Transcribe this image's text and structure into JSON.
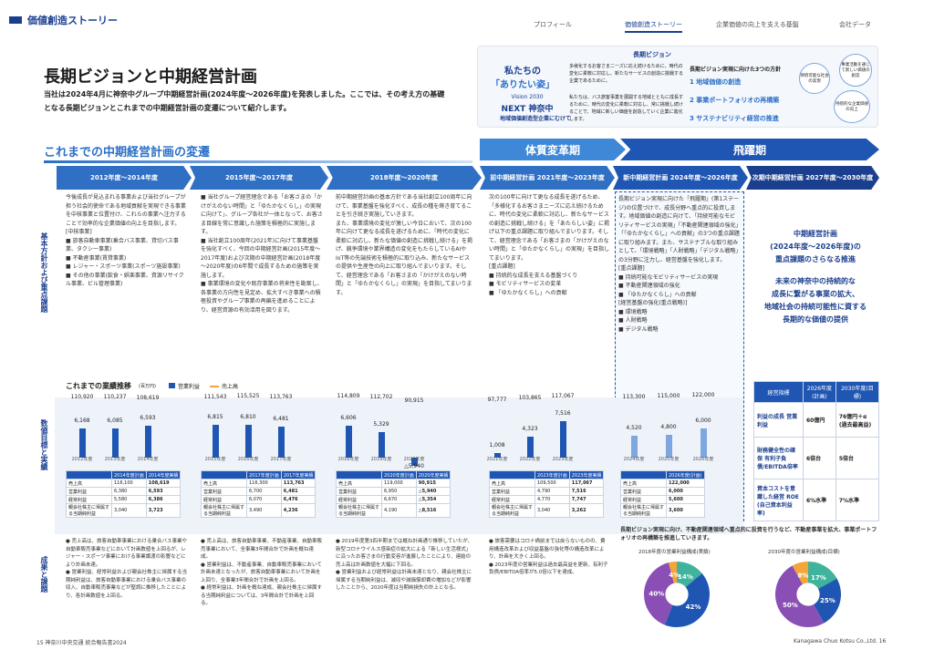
{
  "header": {
    "section": "価値創造ストーリー",
    "nav": [
      "プロフィール",
      "価値創造ストーリー",
      "企業価値の向上を支える基盤",
      "会社データ"
    ]
  },
  "title": "長期ビジョンと中期経営計画",
  "lead": "当社は2024年4月に神奈中グループ中期経営計画(2024年度～2026年度)を発表しました。ここでは、その考え方の基礎となる長期ビジョンとこれまでの中期経営計画の変遷について紹介します。",
  "vision": {
    "label": "長期ビジョン",
    "slogan1": "私たちの",
    "slogan2": "「ありたい姿」",
    "v2030": "Vision 2030",
    "next": "NEXT 神奈中",
    "sub": "地域価値創造型企業にむけて",
    "desc1": "多様化するお客さまニーズに応え続けるために、時代の変化に柔軟に対応し、新たなサービスの創造に挑戦する企業であるために。",
    "desc2": "私たちは、バス旅客事業を展開する地域とともに成長するために、時代の変化に柔軟に対応し、常に挑戦し続けることで、地域に新しい価値を創造していく企業に進化します。",
    "policy_title": "長期ビジョン実現に向けた3つの方針",
    "policies": [
      "1 地域価値の創造",
      "2 事業ポートフォリオの再構築",
      "3 サステナビリティ経営の推進"
    ],
    "cycle": [
      "持続可能な社会の実現",
      "事業活動を通じて新しい価値の創造",
      "持続的な企業価値の向上"
    ]
  },
  "section_title": "これまでの中期経営計画の変遷",
  "bands": [
    "体質変革期",
    "飛躍期"
  ],
  "periods": [
    "2012年度～2014年度",
    "2015年度～2017年度",
    "2018年度～2020年度",
    "前中期経営計画 2021年度～2023年度",
    "新中期経営計画 2024年度～2026年度",
    "次期中期経営計画 2027年度～2030年度"
  ],
  "row_labels": [
    "基本方針および重点課題",
    "数値目標と実績",
    "成果と課題"
  ],
  "policies_text": [
    "今後成長が見込まれる事業および当社グループが担う社会的使命である地域貢献を実現できる事業を中核事業と位置付け、これらの事業へ注力することで効率的な企業価値の向上を目指します。\n[中核事業]\n■ 旅客自動車事業(乗合バス事業、貸切バス事業、タクシー事業)\n■ 不動産事業(賃貸事業)\n■ レジャー・スポーツ事業(スポーツ施設事業)\n■ その他の事業(飲食・娯楽事業、資源リサイクル事業、ビル管理事業)",
    "■ 当社グループ経営理念である「お客さまの「かけがえのない時間」と「ゆたかなくらし」の実現に向けて」、グループ各社が一体となって、お客さま目線を常に意識した施策を積極的に実施します。\n■ 当社創立100周年(2021年)に向けて事業基盤を強化すべく、今回の中期経営計画(2015年度～2017年度)および次期の中期経営計画(2018年度～2020年度)の6年間で成長するための施策を実施します。\n■ 事業環境の変化や既存事業の将来性を勘案し、各事業の方向性を見定め、拡大すべき事業への積極投資やグループ事業の再編を進めることにより、経営資源の有効活用を図ります。",
    "前中期経営計画の基本方針である当社創立100周年に向けて、事業基盤を強化すべく、成長の種を蒔き育てることを引き続き実施していきます。\nまた、事業環境の変化が激しい今日において、次の100年に向けて更なる成長を遂げるために、「時代の変化に柔軟に対応し、新たな価値の創造に挑戦し続ける」を掲げ、競争環境や業界構造の変化をもたらしているAIやIoT等の先端技術を積極的に取り込み、新たなサービスの提供や生産性の向上に取り組んでまいります。そして、経営理念である「お客さまの「かけがえのない時間」と「ゆたかなくらし」の実現」を目指してまいります。",
    "次の100年に向けて更なる成長を遂げるため、「多様化するお客さまニーズに応え続けるために、時代の変化に柔軟に対応し、新たなサービスの創造に挑戦し続ける」を「あたらしい姿」に掲げ以下の重点課題に取り組んでまいります。そして、経営理念である「お客さまの「かけがえのない時間」と「ゆたかなくらし」の実現」を目指してまいります。\n[重点課題]\n■ 持続的な成長を支える基盤づくり\n■ モビリティサービスの変革\n■ 「ゆたかなくらし」への貢献",
    "長期ビジョン実現に向けた「飛躍期」(第1ステージ)の位置づけで、成長分野へ重点的に投資します。地域価値の創造に向けて、「持続可能なモビリティサービスの実現」「不動産関連領域の強化」「「ゆたかなくらし」への貢献」の3つの重点課題に取り組みます。また、サステナブルな取り組みとして、「環境戦略」「人財戦略」「デジタル戦略」の3分野に注力し、経営基盤を強化します。\n[重点課題]\n■ 持続可能なモビリティサービスの実現\n■ 不動産関連領域の強化\n■ 「ゆたかなくらし」への貢献\n[経営基盤の強化(重点戦略)]\n■ 環境戦略\n■ 人財戦略\n■ デジタル戦略"
  ],
  "next_plan": {
    "line1": "中期経営計画",
    "line2": "(2024年度～2026年度)の",
    "line3": "重点課題のさらなる推進",
    "line4": "未来の神奈中の持続的な",
    "line5": "成長に繋がる事業の拡大、",
    "line6": "地域社会の持続可能性に資する",
    "line7": "長期的な価値の提供"
  },
  "perf": {
    "title": "これまでの業績推移",
    "unit": "(百万円)",
    "legend_op": "営業利益",
    "legend_sales": "売上高",
    "unit2": "(百万円)"
  },
  "chart_data": {
    "type": "bar",
    "title": "これまでの業績推移",
    "years": [
      "2012年度",
      "2013年度",
      "2014年度",
      "2015年度",
      "2016年度",
      "2017年度",
      "2018年度",
      "2019年度",
      "2020年度",
      "2021年度",
      "2022年度",
      "2023年度",
      "2024年度",
      "2025年度",
      "2026年度"
    ],
    "sales": [
      110920,
      110237,
      108619,
      111543,
      115525,
      113763,
      114809,
      112702,
      90915,
      97777,
      103865,
      117067,
      113300,
      115000,
      122000
    ],
    "operating_profit": [
      6168,
      6085,
      6593,
      6815,
      6810,
      6481,
      6606,
      5329,
      -5940,
      1008,
      4323,
      7516,
      4520,
      4800,
      6000
    ]
  },
  "tables": [
    {
      "h": [
        "",
        "2014年度計画",
        "2014年度実績"
      ],
      "rows": [
        [
          "売上高",
          "116,100",
          "108,619"
        ],
        [
          "営業利益",
          "6,380",
          "6,593"
        ],
        [
          "経常利益",
          "5,580",
          "6,386"
        ],
        [
          "親会社株主に帰属する当期純利益",
          "3,040",
          "3,723"
        ]
      ]
    },
    {
      "h": [
        "",
        "2017年度計画",
        "2017年度実績"
      ],
      "rows": [
        [
          "売上高",
          "116,300",
          "113,763"
        ],
        [
          "営業利益",
          "6,700",
          "6,481"
        ],
        [
          "経常利益",
          "6,070",
          "6,476"
        ],
        [
          "親会社株主に帰属する当期純利益",
          "3,490",
          "4,236"
        ]
      ]
    },
    {
      "h": [
        "",
        "2020年度計画",
        "2020年度実績"
      ],
      "rows": [
        [
          "売上高",
          "119,000",
          "90,915"
        ],
        [
          "営業利益",
          "6,950",
          "△5,940"
        ],
        [
          "経常利益",
          "6,670",
          "△5,354"
        ],
        [
          "親会社株主に帰属する当期純利益",
          "4,190",
          "△8,516"
        ]
      ]
    },
    {
      "h": [
        "",
        "2023年度計画",
        "2023年度実績"
      ],
      "rows": [
        [
          "売上高",
          "109,500",
          "117,067"
        ],
        [
          "営業利益",
          "4,790",
          "7,516"
        ],
        [
          "経常利益",
          "4,770",
          "7,747"
        ],
        [
          "親会社株主に帰属する当期純利益",
          "3,040",
          "3,262"
        ]
      ]
    },
    {
      "h": [
        "",
        "2026年度(計画)"
      ],
      "rows": [
        [
          "売上高",
          "122,000"
        ],
        [
          "営業利益",
          "6,000"
        ],
        [
          "経常利益",
          "5,600"
        ],
        [
          "親会社株主に帰属する当期純利益",
          "3,600"
        ]
      ]
    }
  ],
  "goals": {
    "h": [
      "経営指標",
      "2026年度(計画)",
      "2030年度(目標)"
    ],
    "rows": [
      [
        "利益の成長 営業利益",
        "60億円",
        "76億円＋α (過去最高益)"
      ],
      [
        "財務健全性の確保 有利子負債/EBITDA倍率",
        "6倍台",
        "5倍台"
      ],
      [
        "資本コストを意識した経営 ROE (自己資本利益率)",
        "6%水準",
        "7%水準"
      ]
    ]
  },
  "results": [
    "● 売上高は、旅客自動車事業における乗合バス事業や自動車販売事業などにおいて計画数値を上回るが、レジャー・スポーツ事業における事業譲渡の影響などにより計画未達。\n● 営業利益、経常利益および親会社株主に帰属する当期純利益は、旅客自動車事業における乗合バス事業の収入、自動車販売事業などが堅調に推移したことにより、各計画数値を上回る。",
    "● 売上高は、旅客自動車事業、不動産事業、自動車販売事業において、全事業3年間合計で計画を概ね達成。\n● 営業利益は、不動産事業、自動車販売事業において計画未達となったが、旅客自動車事業において計画を上回り、全事業3年間合計で計画を上回る。\n● 経常利益は、計画を概ね達成、親会社株主に帰属する当期純利益については、3年間合計で計画を上回る。",
    "● 2019年度第3四半期までは概ね計画通り推移していたが、新型コロナウイルス感染症の拡大による「新しい生活様式」に沿ったお客さまの行動変容が進展したことにより、連結の売上高は計画数値を大幅に下回る。\n● 営業利益および経常利益は計画未達となり、親会社株主に帰属する当期純利益は、減収や減価償却費の増加などが影響したことから、2020年度は当期純損失の計上となる。",
    "● 旅客需要はコロナ禍前までは戻らないものの、費用構造改革および収益基盤の強化等の構造改革により、計画を大きく上回る。\n● 2023年度の営業利益は過去最高益を更新、有利子負債/EBITDA倍率が5.0倍以下を達成。"
  ],
  "portfolio": {
    "note": "長期ビジョン実現に向け、不動産関連領域へ重点的に投資を行うなど、不動産事業を拡大、事業ポートフォリオの再構築を推進していきます。",
    "pie1_title": "2018年度の営業利益構成(実績)",
    "pie2_title": "2030年度の営業利益構成(目標)",
    "pie1": [
      {
        "name": "旅客自動車",
        "value": 42
      },
      {
        "name": "不動産",
        "value": 40
      },
      {
        "name": "自動車販売",
        "value": 14
      },
      {
        "name": "その他",
        "value": 4
      }
    ],
    "pie2": [
      {
        "name": "旅客自動車",
        "value": 25
      },
      {
        "name": "不動産",
        "value": 50
      },
      {
        "name": "自動車販売",
        "value": 17
      },
      {
        "name": "その他",
        "value": 8
      }
    ],
    "colors": [
      "#1f56b3",
      "#8a4fb5",
      "#3fb39c",
      "#f4a53a"
    ]
  },
  "footer": {
    "left": "15  神奈川中央交通  統合報告書2024",
    "right": "Kanagawa Chuo Kotsu Co.,Ltd.  16"
  }
}
